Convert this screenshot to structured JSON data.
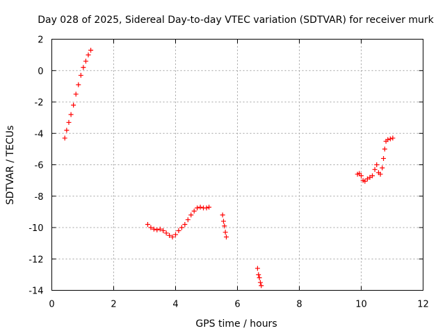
{
  "chart_data": {
    "type": "scatter",
    "title": "Day 028 of 2025, Sidereal Day-to-day VTEC variation (SDTVAR) for receiver murk",
    "xlabel": "GPS time / hours",
    "ylabel": "SDTVAR / TECUs",
    "xlim": [
      0,
      12
    ],
    "ylim": [
      -14,
      2
    ],
    "xticks": [
      0,
      2,
      4,
      6,
      8,
      10,
      12
    ],
    "yticks": [
      -14,
      -12,
      -10,
      -8,
      -6,
      -4,
      -2,
      0,
      2
    ],
    "grid": true,
    "marker": "+",
    "marker_color": "#ff0000",
    "segments": [
      {
        "x": [
          0.42,
          0.48,
          0.55,
          0.62,
          0.7,
          0.78,
          0.86,
          0.94,
          1.02,
          1.1,
          1.18,
          1.26
        ],
        "y": [
          -4.3,
          -3.8,
          -3.3,
          -2.8,
          -2.2,
          -1.5,
          -0.9,
          -0.3,
          0.2,
          0.6,
          1.0,
          1.3
        ]
      },
      {
        "x": [
          3.1,
          3.2,
          3.3,
          3.4,
          3.5,
          3.6,
          3.7,
          3.8,
          3.9,
          4.0,
          4.1,
          4.2,
          4.3,
          4.4,
          4.5,
          4.6,
          4.7,
          4.8,
          4.9,
          5.0,
          5.08
        ],
        "y": [
          -9.8,
          -10.0,
          -10.1,
          -10.15,
          -10.1,
          -10.2,
          -10.35,
          -10.5,
          -10.6,
          -10.45,
          -10.2,
          -10.0,
          -9.8,
          -9.5,
          -9.2,
          -8.95,
          -8.75,
          -8.7,
          -8.75,
          -8.75,
          -8.7
        ]
      },
      {
        "x": [
          5.52,
          5.55,
          5.58,
          5.61,
          5.64
        ],
        "y": [
          -9.2,
          -9.6,
          -9.9,
          -10.3,
          -10.6
        ]
      },
      {
        "x": [
          6.65,
          6.68,
          6.71,
          6.74,
          6.77
        ],
        "y": [
          -12.6,
          -13.0,
          -13.2,
          -13.5,
          -13.7
        ]
      },
      {
        "x": [
          9.88,
          9.94,
          10.0,
          10.06,
          10.12,
          10.2,
          10.28,
          10.36,
          10.44,
          10.5,
          10.56,
          10.62,
          10.68,
          10.72,
          10.76,
          10.8,
          10.86,
          10.94,
          11.02
        ],
        "y": [
          -6.6,
          -6.55,
          -6.7,
          -7.0,
          -7.05,
          -6.9,
          -6.8,
          -6.7,
          -6.3,
          -6.0,
          -6.5,
          -6.6,
          -6.2,
          -5.6,
          -5.0,
          -4.5,
          -4.4,
          -4.35,
          -4.3
        ]
      }
    ]
  }
}
